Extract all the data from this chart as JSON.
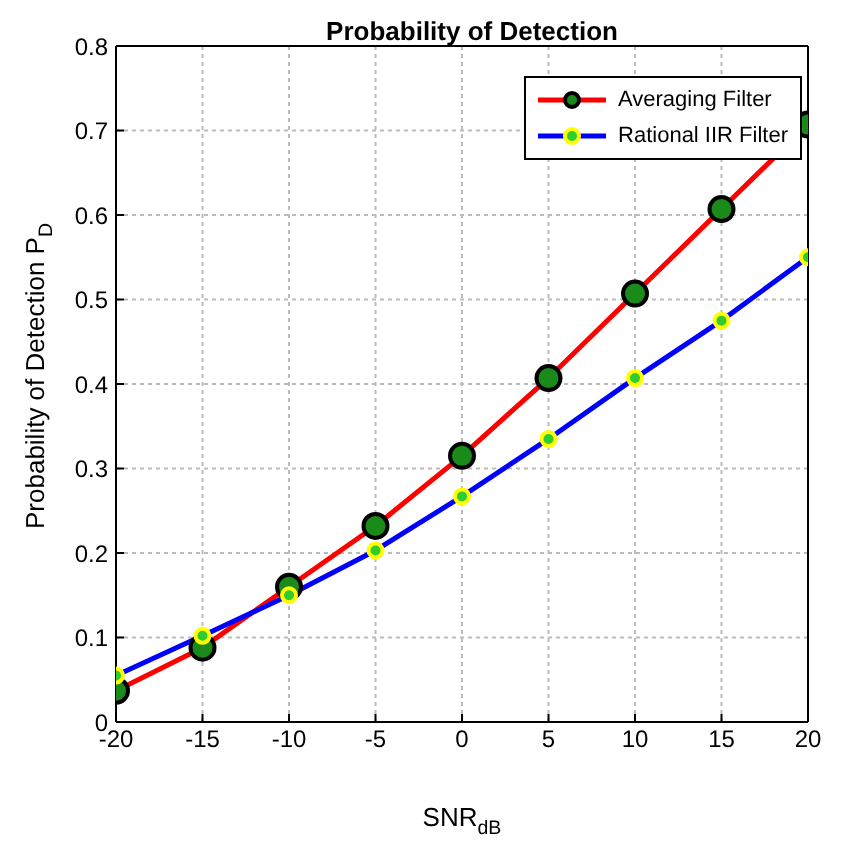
{
  "chart_data": {
    "type": "line",
    "title": "Probability of Detection",
    "xlabel": "SNR$_{dB}$",
    "ylabel": "Probability of Detection P$_{D}$",
    "x": [
      -20,
      -15,
      -10,
      -5,
      0,
      5,
      10,
      15,
      20
    ],
    "series": [
      {
        "name": "Averaging Filter",
        "color": "#ff0000",
        "values": [
          0.037,
          0.088,
          0.16,
          0.232,
          0.315,
          0.407,
          0.507,
          0.607,
          0.707
        ]
      },
      {
        "name": "Rational IIR Filter",
        "color": "#0000ff",
        "values": [
          0.055,
          0.102,
          0.15,
          0.203,
          0.267,
          0.335,
          0.407,
          0.475,
          0.55
        ]
      }
    ],
    "xlim": [
      -20,
      20
    ],
    "xticks": [
      -20,
      -15,
      -10,
      -5,
      0,
      5,
      10,
      15,
      20
    ],
    "ylim": [
      0,
      0.8
    ],
    "yticks": [
      0,
      0.1,
      0.2,
      0.3,
      0.4,
      0.5,
      0.6,
      0.7,
      0.8
    ],
    "grid": true,
    "legend": "top right",
    "marker": "circle",
    "line_style": "solid"
  }
}
